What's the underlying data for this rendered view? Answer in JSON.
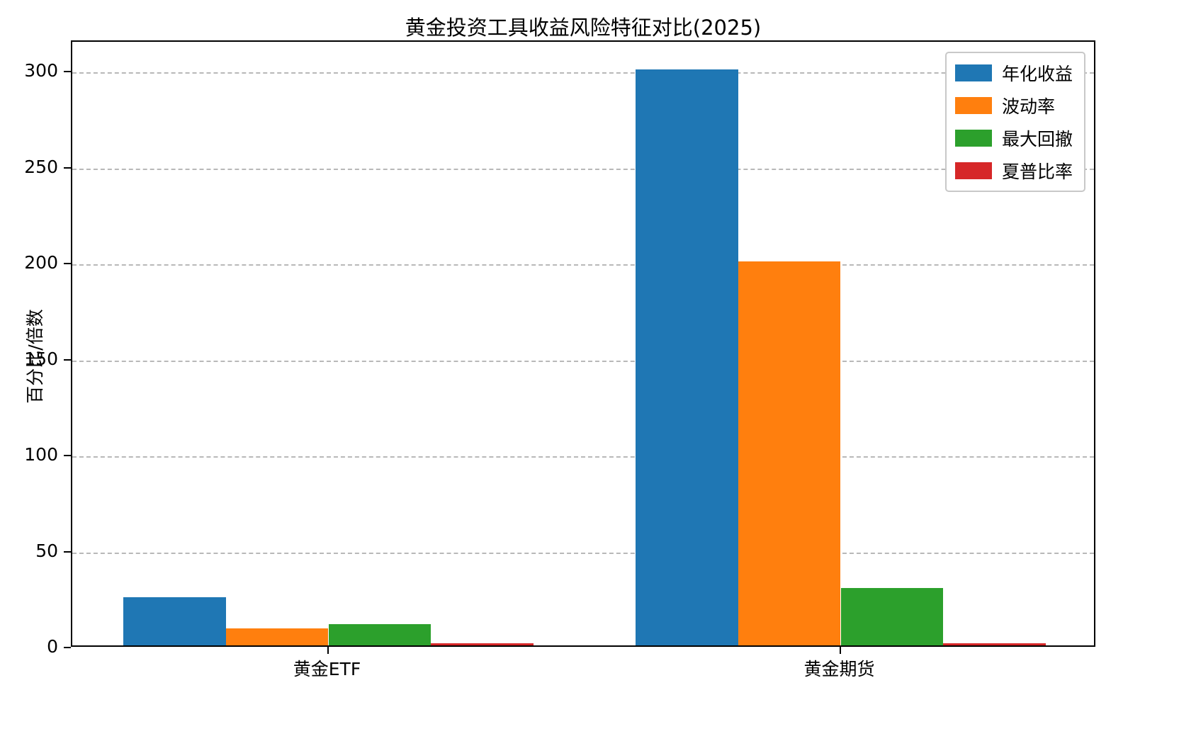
{
  "chart_data": {
    "type": "bar",
    "title": "黄金投资工具收益风险特征对比(2025)",
    "ylabel": "百分比/倍数",
    "xlabel": "",
    "categories": [
      "黄金ETF",
      "黄金期货"
    ],
    "series": [
      {
        "name": "年化收益",
        "color": "#1f77b4",
        "values": [
          25,
          300
        ]
      },
      {
        "name": "波动率",
        "color": "#ff7f0e",
        "values": [
          9,
          200
        ]
      },
      {
        "name": "最大回撤",
        "color": "#2ca02c",
        "values": [
          11,
          30
        ]
      },
      {
        "name": "夏普比率",
        "color": "#d62728",
        "values": [
          1,
          1
        ]
      }
    ],
    "ylim": [
      0,
      316
    ],
    "yticks": [
      0,
      50,
      100,
      150,
      200,
      250,
      300
    ],
    "grid": "dashed-horizontal",
    "legend_position": "upper-right"
  }
}
